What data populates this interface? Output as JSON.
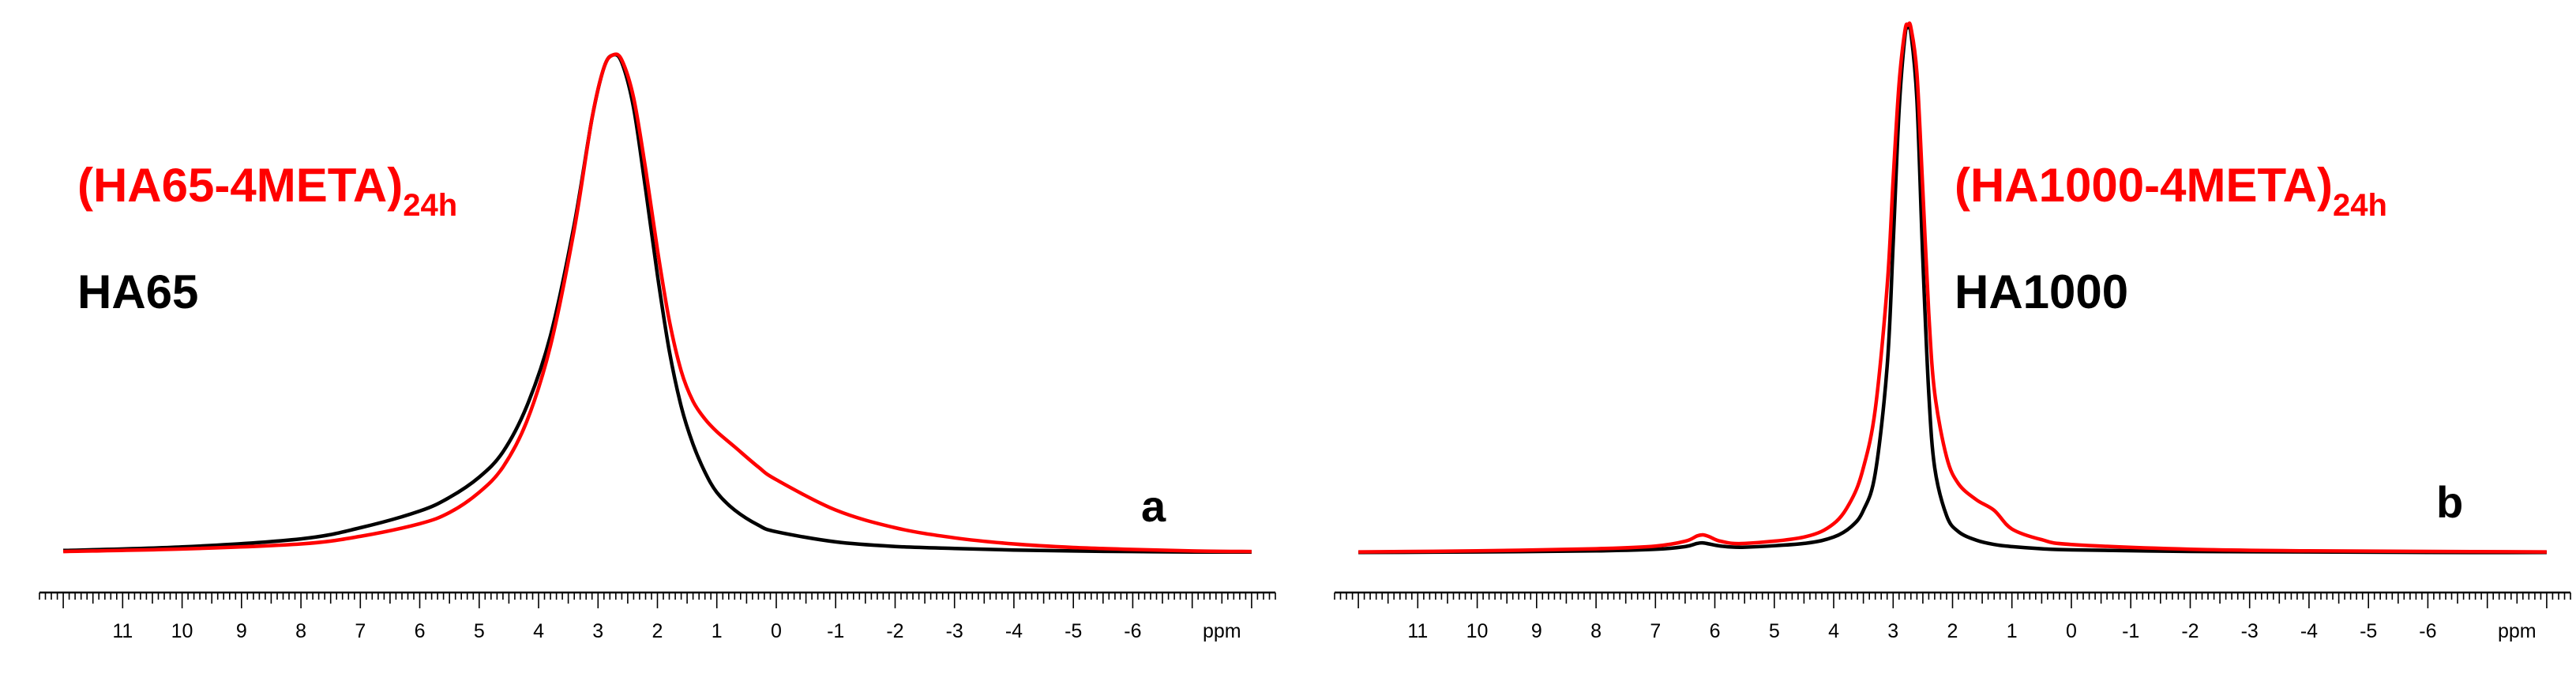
{
  "chart_data": [
    {
      "type": "line",
      "panel_label": "a",
      "xlabel": "ppm",
      "x_reversed": true,
      "xlim": [
        12.4,
        -8.4
      ],
      "ylim": [
        0,
        1
      ],
      "grid": false,
      "x_ticks": [
        11,
        10,
        9,
        8,
        7,
        6,
        5,
        4,
        3,
        2,
        1,
        0,
        -1,
        -2,
        -3,
        -4,
        -5,
        -6
      ],
      "legend": [
        {
          "text": "(HA65-4META)",
          "subscript": "24h",
          "color": "#ff0000"
        },
        {
          "text": "HA65",
          "subscript": "",
          "color": "#000000"
        }
      ],
      "series": [
        {
          "color": "#000000",
          "x": [
            12,
            10,
            8,
            7,
            6,
            5.5,
            5,
            4.6,
            4.2,
            3.8,
            3.4,
            3.1,
            2.9,
            2.75,
            2.6,
            2.4,
            2.2,
            2.0,
            1.8,
            1.6,
            1.4,
            1.2,
            1.0,
            0.7,
            0.3,
            0,
            -1,
            -2,
            -3,
            -4,
            -5,
            -6,
            -7,
            -8
          ],
          "y": [
            0.005,
            0.012,
            0.028,
            0.05,
            0.083,
            0.11,
            0.15,
            0.2,
            0.29,
            0.43,
            0.65,
            0.86,
            0.96,
            0.985,
            0.97,
            0.88,
            0.72,
            0.55,
            0.4,
            0.29,
            0.215,
            0.16,
            0.12,
            0.085,
            0.055,
            0.042,
            0.022,
            0.013,
            0.009,
            0.006,
            0.004,
            0.003,
            0.002,
            0.002
          ]
        },
        {
          "color": "#ff0000",
          "x": [
            12,
            10,
            8,
            7,
            6,
            5.5,
            5,
            4.6,
            4.2,
            3.8,
            3.4,
            3.1,
            2.9,
            2.75,
            2.6,
            2.4,
            2.2,
            2.0,
            1.8,
            1.6,
            1.4,
            1.2,
            1.0,
            0.7,
            0.3,
            0,
            -1,
            -2,
            -3,
            -4,
            -5,
            -6,
            -7,
            -8
          ],
          "y": [
            0.003,
            0.008,
            0.018,
            0.033,
            0.058,
            0.08,
            0.12,
            0.17,
            0.26,
            0.41,
            0.64,
            0.86,
            0.96,
            0.985,
            0.975,
            0.9,
            0.76,
            0.6,
            0.46,
            0.36,
            0.3,
            0.265,
            0.24,
            0.21,
            0.17,
            0.145,
            0.085,
            0.05,
            0.03,
            0.018,
            0.011,
            0.007,
            0.004,
            0.003
          ]
        }
      ]
    },
    {
      "type": "line",
      "panel_label": "b",
      "xlabel": "ppm",
      "x_reversed": true,
      "xlim": [
        12.4,
        -8.4
      ],
      "ylim": [
        0,
        1
      ],
      "grid": false,
      "x_ticks": [
        11,
        10,
        9,
        8,
        7,
        6,
        5,
        4,
        3,
        2,
        1,
        0,
        -1,
        -2,
        -3,
        -4,
        -5,
        -6
      ],
      "legend": [
        {
          "text": "(HA1000-4META)",
          "subscript": "24h",
          "color": "#ff0000"
        },
        {
          "text": "HA1000",
          "subscript": "",
          "color": "#000000"
        }
      ],
      "series": [
        {
          "color": "#000000",
          "x": [
            12,
            10,
            8,
            7,
            6.5,
            6.3,
            6.2,
            6.1,
            5.9,
            5.5,
            4.5,
            4.0,
            3.7,
            3.5,
            3.3,
            3.1,
            3.0,
            2.9,
            2.8,
            2.75,
            2.7,
            2.6,
            2.5,
            2.4,
            2.3,
            2.1,
            1.9,
            1.6,
            1.3,
            1.0,
            0.5,
            0,
            -2,
            -4,
            -6,
            -8
          ],
          "y": [
            0.001,
            0.002,
            0.004,
            0.007,
            0.012,
            0.018,
            0.019,
            0.017,
            0.013,
            0.011,
            0.018,
            0.03,
            0.05,
            0.08,
            0.15,
            0.35,
            0.58,
            0.83,
            0.97,
            0.985,
            0.975,
            0.85,
            0.55,
            0.3,
            0.16,
            0.07,
            0.04,
            0.024,
            0.016,
            0.012,
            0.008,
            0.006,
            0.003,
            0.002,
            0.001,
            0.001
          ]
        },
        {
          "color": "#ff0000",
          "x": [
            12,
            10,
            8,
            7,
            6.5,
            6.3,
            6.2,
            6.1,
            5.9,
            5.5,
            4.5,
            4.0,
            3.7,
            3.5,
            3.3,
            3.1,
            3.0,
            2.9,
            2.8,
            2.75,
            2.7,
            2.6,
            2.5,
            2.4,
            2.3,
            2.1,
            1.9,
            1.6,
            1.3,
            1.0,
            0.5,
            0,
            -2,
            -4,
            -6,
            -8
          ],
          "y": [
            0.002,
            0.004,
            0.008,
            0.013,
            0.022,
            0.032,
            0.034,
            0.031,
            0.022,
            0.018,
            0.03,
            0.055,
            0.1,
            0.16,
            0.27,
            0.5,
            0.7,
            0.88,
            0.98,
            0.99,
            0.985,
            0.9,
            0.68,
            0.45,
            0.3,
            0.18,
            0.13,
            0.1,
            0.08,
            0.045,
            0.025,
            0.016,
            0.007,
            0.004,
            0.003,
            0.002
          ]
        }
      ]
    }
  ]
}
